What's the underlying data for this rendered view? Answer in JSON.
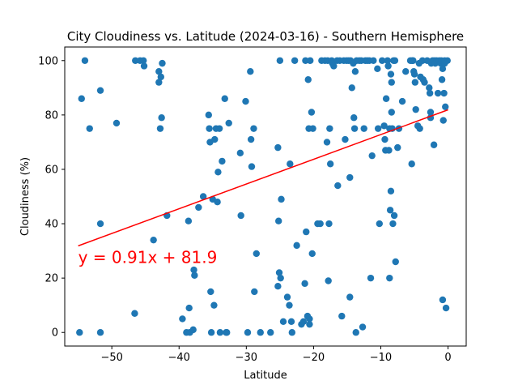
{
  "chart_data": {
    "type": "scatter",
    "title": "City Cloudiness vs. Latitude (2024-03-16) - Southern Hemisphere",
    "xlabel": "Latitude",
    "ylabel": "Cloudiness (%)",
    "xlim": [
      -57,
      2.7
    ],
    "ylim": [
      -5,
      105
    ],
    "xticks": [
      -50,
      -40,
      -30,
      -20,
      -10,
      0
    ],
    "yticks": [
      0,
      20,
      40,
      60,
      80,
      100
    ],
    "xtick_labels": [
      "−50",
      "−40",
      "−30",
      "−20",
      "−10",
      "0"
    ],
    "ytick_labels": [
      "0",
      "20",
      "40",
      "60",
      "80",
      "100"
    ],
    "grid": false,
    "marker_color": "#1f77b4",
    "line_color": "#ff0000",
    "regression": {
      "slope": 0.91,
      "intercept": 81.9,
      "x_range": [
        -55,
        0
      ]
    },
    "annotation": {
      "text": "y = 0.91x + 81.9",
      "x": -55,
      "y": 25,
      "color": "#ff0000"
    },
    "points": [
      [
        -54.8,
        0
      ],
      [
        -54.5,
        86
      ],
      [
        -54,
        100
      ],
      [
        -53.3,
        75
      ],
      [
        -51.7,
        89
      ],
      [
        -51.7,
        40
      ],
      [
        -51.7,
        0
      ],
      [
        -49.3,
        77
      ],
      [
        -46.6,
        7
      ],
      [
        -46.5,
        100
      ],
      [
        -45.8,
        100
      ],
      [
        -45.3,
        100
      ],
      [
        -45.2,
        98
      ],
      [
        -43.8,
        34
      ],
      [
        -43,
        96
      ],
      [
        -43,
        92
      ],
      [
        -42.8,
        75
      ],
      [
        -42.7,
        94
      ],
      [
        -42.6,
        79
      ],
      [
        -42.5,
        99
      ],
      [
        -41.8,
        43
      ],
      [
        -39.5,
        5
      ],
      [
        -38.9,
        0
      ],
      [
        -38.6,
        41
      ],
      [
        -38.5,
        9
      ],
      [
        -38.4,
        0
      ],
      [
        -37.9,
        1
      ],
      [
        -37.8,
        23
      ],
      [
        -37.7,
        21
      ],
      [
        -37.1,
        46
      ],
      [
        -36.4,
        50
      ],
      [
        -35.6,
        80
      ],
      [
        -35.5,
        75
      ],
      [
        -35.4,
        70
      ],
      [
        -35.3,
        15
      ],
      [
        -35.2,
        0
      ],
      [
        -35,
        49
      ],
      [
        -34.8,
        10
      ],
      [
        -34.7,
        71
      ],
      [
        -34.5,
        75
      ],
      [
        -34.3,
        48
      ],
      [
        -34.2,
        59
      ],
      [
        -34,
        75
      ],
      [
        -33.9,
        0
      ],
      [
        -33.6,
        63
      ],
      [
        -33.2,
        86
      ],
      [
        -33,
        0
      ],
      [
        -32.9,
        0
      ],
      [
        -32.6,
        77
      ],
      [
        -30.9,
        66
      ],
      [
        -30.8,
        43
      ],
      [
        -30.1,
        85
      ],
      [
        -29.8,
        0
      ],
      [
        -29.4,
        96
      ],
      [
        -29.3,
        71
      ],
      [
        -29.2,
        61
      ],
      [
        -28.9,
        75
      ],
      [
        -28.8,
        15
      ],
      [
        -28.5,
        29
      ],
      [
        -27.9,
        0
      ],
      [
        -26.4,
        0
      ],
      [
        -25.3,
        17
      ],
      [
        -25.3,
        68
      ],
      [
        -25.2,
        41
      ],
      [
        -25.1,
        22
      ],
      [
        -25,
        100
      ],
      [
        -24.9,
        20
      ],
      [
        -24.8,
        49
      ],
      [
        -24.5,
        4
      ],
      [
        -23.9,
        13
      ],
      [
        -23.6,
        10
      ],
      [
        -23.5,
        62
      ],
      [
        -23.3,
        4
      ],
      [
        -23.2,
        0
      ],
      [
        -22.8,
        100
      ],
      [
        -22.5,
        32
      ],
      [
        -21.8,
        3
      ],
      [
        -21.5,
        4
      ],
      [
        -21.3,
        18
      ],
      [
        -21.2,
        100
      ],
      [
        -21.1,
        37
      ],
      [
        -20.9,
        6
      ],
      [
        -20.8,
        93
      ],
      [
        -20.7,
        75
      ],
      [
        -20.6,
        5
      ],
      [
        -20.6,
        3
      ],
      [
        -20.5,
        100
      ],
      [
        -20.3,
        81
      ],
      [
        -20.2,
        29
      ],
      [
        -20.1,
        75
      ],
      [
        -19.4,
        40
      ],
      [
        -19,
        40
      ],
      [
        -18.8,
        100
      ],
      [
        -18.3,
        100
      ],
      [
        -18,
        70
      ],
      [
        -17.9,
        100
      ],
      [
        -17.8,
        19
      ],
      [
        -17.7,
        40
      ],
      [
        -17.6,
        75
      ],
      [
        -17.5,
        62
      ],
      [
        -17.3,
        100
      ],
      [
        -17.2,
        99
      ],
      [
        -17,
        98
      ],
      [
        -16.5,
        100
      ],
      [
        -16.4,
        54
      ],
      [
        -16.1,
        100
      ],
      [
        -15.8,
        6
      ],
      [
        -15.5,
        100
      ],
      [
        -15.3,
        71
      ],
      [
        -15.1,
        100
      ],
      [
        -14.8,
        100
      ],
      [
        -14.6,
        13
      ],
      [
        -14.6,
        57
      ],
      [
        -14.5,
        100
      ],
      [
        -14.3,
        90
      ],
      [
        -14.1,
        99
      ],
      [
        -14,
        79
      ],
      [
        -13.9,
        75
      ],
      [
        -13.8,
        96
      ],
      [
        -13.7,
        0
      ],
      [
        -13.6,
        100
      ],
      [
        -13.2,
        100
      ],
      [
        -12.9,
        100
      ],
      [
        -12.7,
        2
      ],
      [
        -12.5,
        75
      ],
      [
        -12.3,
        100
      ],
      [
        -12,
        100
      ],
      [
        -11.7,
        100
      ],
      [
        -11.5,
        20
      ],
      [
        -11.3,
        65
      ],
      [
        -11.1,
        100
      ],
      [
        -10.5,
        97
      ],
      [
        -10.4,
        75
      ],
      [
        -10.2,
        40
      ],
      [
        -9.8,
        100
      ],
      [
        -9.5,
        76
      ],
      [
        -9.4,
        71
      ],
      [
        -9.3,
        67
      ],
      [
        -9.2,
        86
      ],
      [
        -9,
        100
      ],
      [
        -8.9,
        98
      ],
      [
        -8.8,
        67
      ],
      [
        -8.7,
        75
      ],
      [
        -8.7,
        20
      ],
      [
        -8.6,
        45
      ],
      [
        -8.5,
        52
      ],
      [
        -8.5,
        95
      ],
      [
        -8.4,
        92
      ],
      [
        -8.4,
        81
      ],
      [
        -8.3,
        75
      ],
      [
        -8.2,
        40
      ],
      [
        -8.1,
        100
      ],
      [
        -8,
        43
      ],
      [
        -7.9,
        100
      ],
      [
        -7.8,
        26
      ],
      [
        -7.5,
        68
      ],
      [
        -7.3,
        75
      ],
      [
        -6.8,
        85
      ],
      [
        -6.3,
        96
      ],
      [
        -5.6,
        100
      ],
      [
        -5.4,
        62
      ],
      [
        -5.3,
        100
      ],
      [
        -5.2,
        100
      ],
      [
        -5.1,
        96
      ],
      [
        -5,
        95
      ],
      [
        -4.9,
        92
      ],
      [
        -4.8,
        82
      ],
      [
        -4.5,
        76
      ],
      [
        -4.3,
        99
      ],
      [
        -4.2,
        75
      ],
      [
        -4.1,
        94
      ],
      [
        -3.8,
        100
      ],
      [
        -3.7,
        93
      ],
      [
        -3.5,
        92
      ],
      [
        -3.1,
        100
      ],
      [
        -2.8,
        90
      ],
      [
        -2.7,
        88
      ],
      [
        -2.6,
        81
      ],
      [
        -2.6,
        79
      ],
      [
        -2.5,
        99
      ],
      [
        -2.3,
        100
      ],
      [
        -2.1,
        69
      ],
      [
        -2,
        100
      ],
      [
        -1.9,
        99
      ],
      [
        -1.7,
        100
      ],
      [
        -1.5,
        88
      ],
      [
        -1.3,
        100
      ],
      [
        -1.1,
        99
      ],
      [
        -1,
        100
      ],
      [
        -0.9,
        93
      ],
      [
        -0.8,
        97
      ],
      [
        -0.8,
        12
      ],
      [
        -0.7,
        78
      ],
      [
        -0.6,
        88
      ],
      [
        -0.5,
        99
      ],
      [
        -0.5,
        100
      ],
      [
        -0.4,
        83
      ],
      [
        -0.3,
        9
      ],
      [
        -0.1,
        100
      ]
    ]
  }
}
